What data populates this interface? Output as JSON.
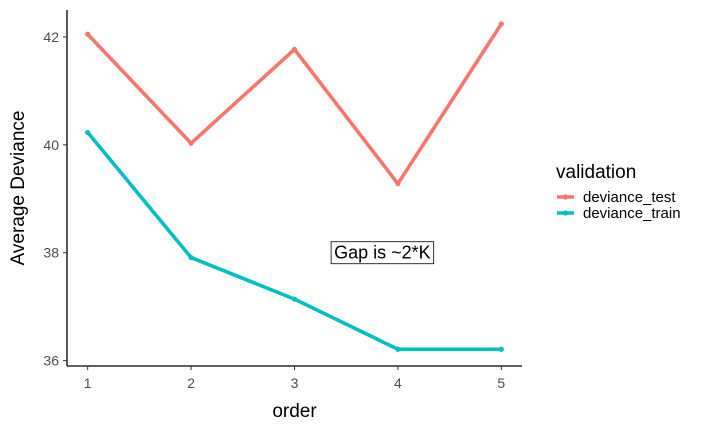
{
  "chart_data": {
    "type": "line",
    "title": "",
    "xlabel": "order",
    "ylabel": "Average Deviance",
    "x": [
      1,
      2,
      3,
      4,
      5
    ],
    "x_tick_labels": [
      "1",
      "2",
      "3",
      "4",
      "5"
    ],
    "y_ticks": [
      36,
      38,
      40,
      42
    ],
    "y_tick_labels": [
      "36",
      "38",
      "40",
      "42"
    ],
    "xlim": [
      0.8,
      5.2
    ],
    "ylim": [
      35.9,
      42.5
    ],
    "grid": false,
    "legend": {
      "title": "validation",
      "placement": "right"
    },
    "series": [
      {
        "name": "deviance_test",
        "color": "#F8766D",
        "values": [
          42.05,
          40.03,
          41.77,
          39.28,
          42.24
        ]
      },
      {
        "name": "deviance_train",
        "color": "#00BFC4",
        "values": [
          40.23,
          37.91,
          37.14,
          36.21,
          36.21
        ]
      }
    ],
    "annotations": [
      {
        "text": "Gap is ~2*K",
        "x": 3.85,
        "y": 38.0
      }
    ]
  }
}
